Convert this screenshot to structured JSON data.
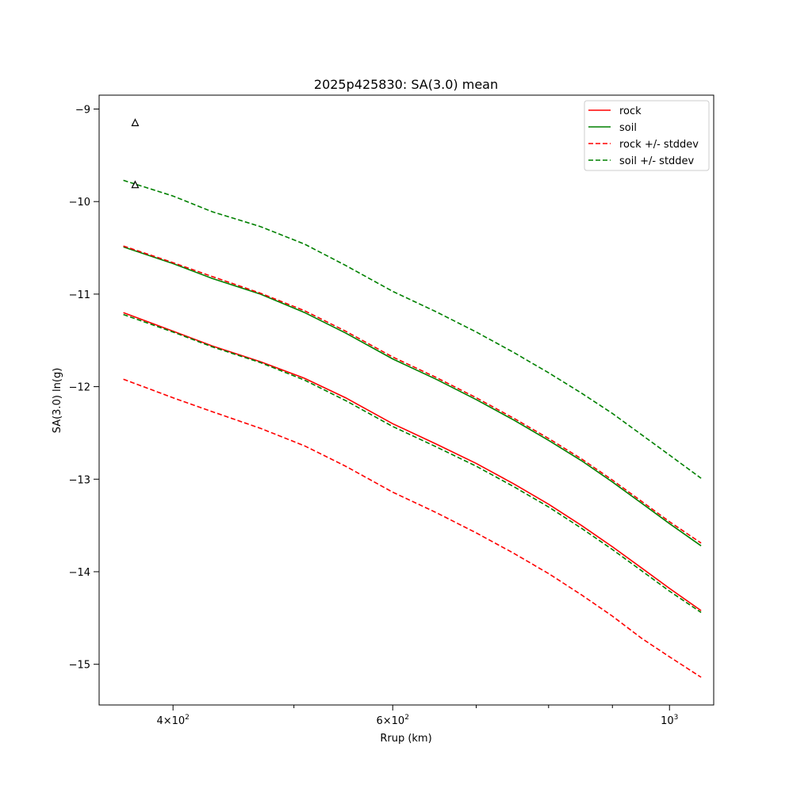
{
  "chart_data": {
    "type": "line",
    "title": "2025p425830: SA(3.0) mean",
    "xlabel": "Rrup (km)",
    "ylabel": "SA(3.0) ln(g)",
    "xscale": "log",
    "xlim": [
      349,
      1085
    ],
    "ylim": [
      -15.44,
      -8.85
    ],
    "grid": false,
    "legend_placement": "top-right",
    "x_ticks": [
      {
        "value": 400,
        "base": "4×10",
        "exp": "2"
      },
      {
        "value": 600,
        "base": "6×10",
        "exp": "2"
      },
      {
        "value": 1000,
        "base": "10",
        "exp": "3"
      }
    ],
    "x_minor_ticks": [
      500,
      700,
      800,
      900
    ],
    "y_ticks": [
      -9,
      -10,
      -11,
      -12,
      -13,
      -14,
      -15
    ],
    "y_tick_labels": [
      "−9",
      "−10",
      "−11",
      "−12",
      "−13",
      "−14",
      "−15"
    ],
    "x": [
      365,
      400,
      430,
      470,
      510,
      550,
      600,
      650,
      700,
      750,
      800,
      850,
      900,
      950,
      1000,
      1060
    ],
    "series": [
      {
        "name": "rock",
        "color": "#ff0000",
        "style": "solid",
        "values": [
          -11.2,
          -11.4,
          -11.56,
          -11.73,
          -11.91,
          -12.12,
          -12.4,
          -12.62,
          -12.83,
          -13.05,
          -13.27,
          -13.5,
          -13.73,
          -13.96,
          -14.18,
          -14.42
        ]
      },
      {
        "name": "soil",
        "color": "#008000",
        "style": "solid",
        "values": [
          -10.49,
          -10.67,
          -10.83,
          -11.0,
          -11.2,
          -11.42,
          -11.7,
          -11.92,
          -12.14,
          -12.36,
          -12.58,
          -12.8,
          -13.03,
          -13.26,
          -13.48,
          -13.72
        ]
      },
      {
        "name": "rock +/- stddev",
        "color": "#ff0000",
        "style": "dashed",
        "values": [
          -10.48,
          -10.66,
          -10.81,
          -10.99,
          -11.18,
          -11.4,
          -11.68,
          -11.9,
          -12.12,
          -12.34,
          -12.56,
          -12.78,
          -13.01,
          -13.24,
          -13.46,
          -13.69
        ]
      },
      {
        "name": "rock +/- stddev",
        "color": "#ff0000",
        "style": "dashed",
        "legend": false,
        "values": [
          -11.92,
          -12.12,
          -12.27,
          -12.45,
          -12.64,
          -12.86,
          -13.14,
          -13.36,
          -13.58,
          -13.8,
          -14.02,
          -14.25,
          -14.48,
          -14.72,
          -14.92,
          -15.14
        ]
      },
      {
        "name": "soil +/- stddev",
        "color": "#008000",
        "style": "dashed",
        "values": [
          -9.77,
          -9.94,
          -10.11,
          -10.27,
          -10.46,
          -10.69,
          -10.97,
          -11.19,
          -11.41,
          -11.63,
          -11.85,
          -12.07,
          -12.29,
          -12.52,
          -12.74,
          -12.99
        ]
      },
      {
        "name": "soil +/- stddev",
        "color": "#008000",
        "style": "dashed",
        "legend": false,
        "values": [
          -11.22,
          -11.41,
          -11.57,
          -11.74,
          -11.93,
          -12.15,
          -12.43,
          -12.65,
          -12.86,
          -13.08,
          -13.3,
          -13.53,
          -13.76,
          -13.99,
          -14.21,
          -14.44
        ]
      }
    ],
    "observations": {
      "marker": "open-triangle",
      "color": "#000000",
      "points": [
        {
          "x": 373,
          "y": -9.15
        },
        {
          "x": 373,
          "y": -9.82
        }
      ]
    }
  }
}
